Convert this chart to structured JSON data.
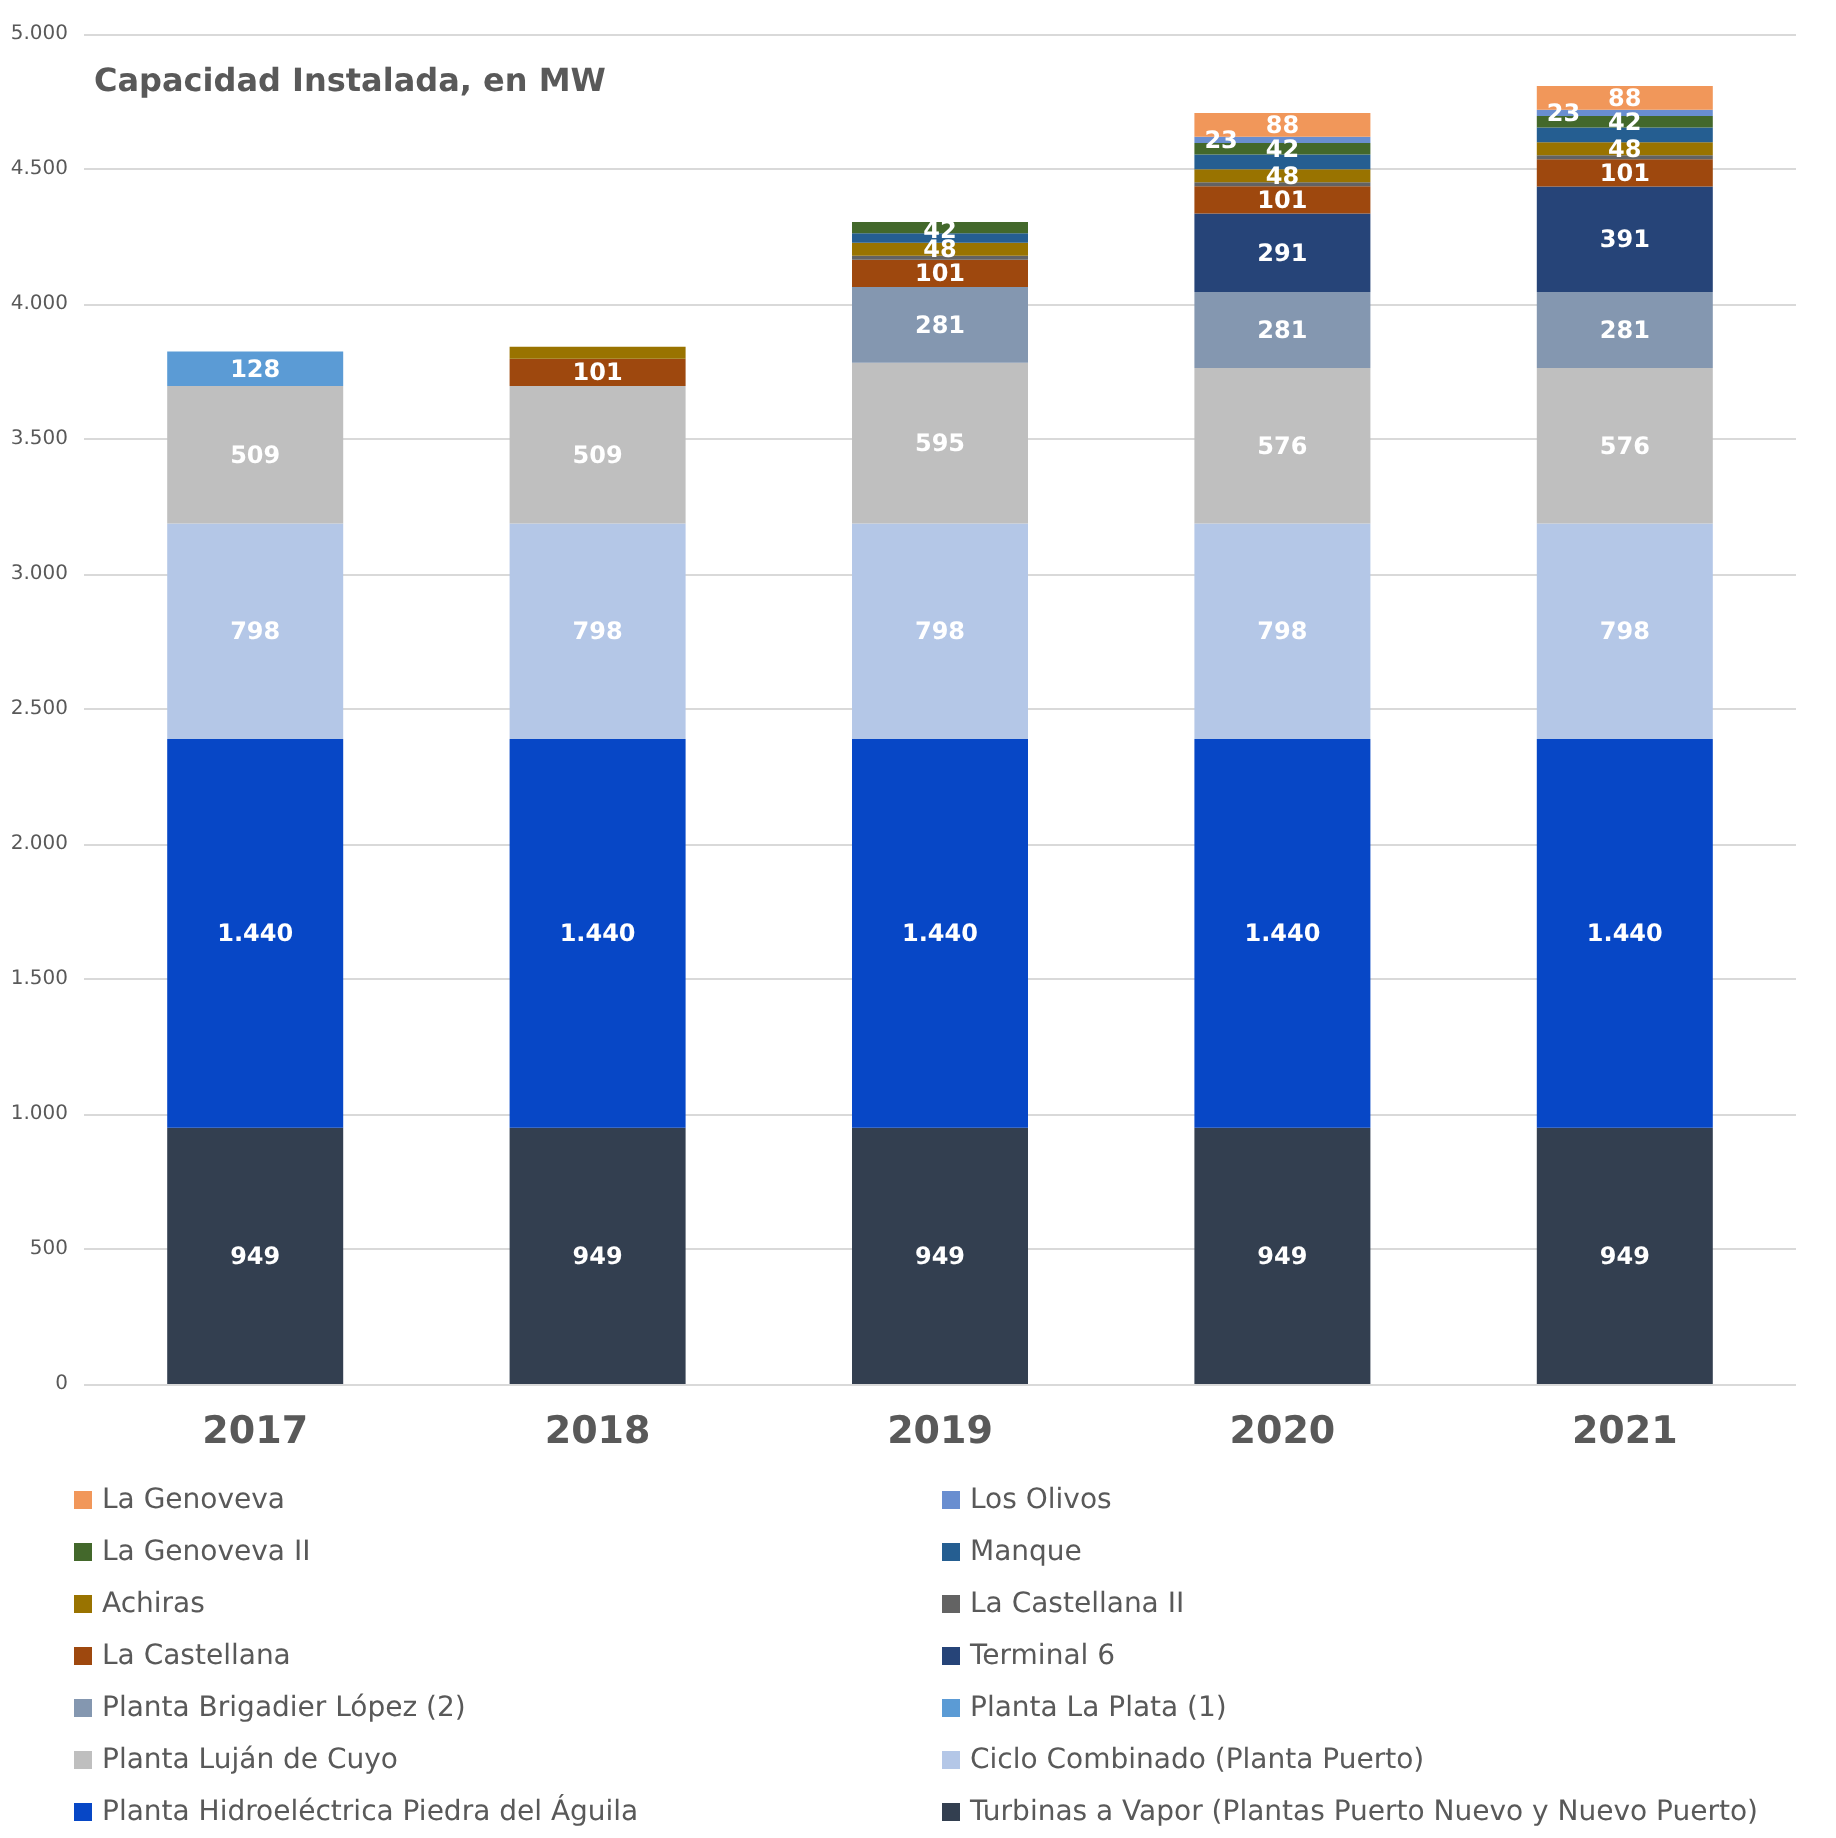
{
  "chart_data": {
    "type": "bar",
    "title": "Capacidad Instalada, en MW",
    "stacked": true,
    "grid": "y",
    "legend": "bottom",
    "categories": [
      "2017",
      "2018",
      "2019",
      "2020",
      "2021"
    ],
    "ylim": [
      0,
      5000
    ],
    "yticks": [
      0,
      500,
      {
        "value": 1000,
        "label": "1.000"
      },
      {
        "value": 1500,
        "label": "1.500"
      },
      {
        "value": 2000,
        "label": "2.000"
      },
      {
        "value": 2500,
        "label": "2.500"
      },
      {
        "value": 3000,
        "label": "3.000"
      },
      {
        "value": 3500,
        "label": "3.500"
      },
      {
        "value": 4000,
        "label": "4.000"
      },
      {
        "value": 4500,
        "label": "4.500"
      },
      {
        "value": 5000,
        "label": "5.000"
      }
    ],
    "series": [
      {
        "name": "Turbinas a Vapor (Plantas Puerto Nuevo y Nuevo Puerto)",
        "color": "#333f50",
        "values": [
          949,
          949,
          949,
          949,
          949
        ],
        "value_labels": [
          "949",
          "949",
          "949",
          "949",
          "949"
        ]
      },
      {
        "name": "Planta Hidroeléctrica Piedra del Águila",
        "color": "#0747c6",
        "values": [
          1440,
          1440,
          1440,
          1440,
          1440
        ],
        "value_labels": [
          "1.440",
          "1.440",
          "1.440",
          "1.440",
          "1.440"
        ]
      },
      {
        "name": "Ciclo Combinado (Planta Puerto)",
        "color": "#b4c7e7",
        "values": [
          798,
          798,
          798,
          798,
          798
        ],
        "value_labels": [
          "798",
          "798",
          "798",
          "798",
          "798"
        ]
      },
      {
        "name": "Planta Luján de Cuyo",
        "color": "#bfbfbf",
        "values": [
          509,
          509,
          595,
          576,
          576
        ],
        "value_labels": [
          "509",
          "509",
          "595",
          "576",
          "576"
        ]
      },
      {
        "name": "Planta La Plata (1)",
        "color": "#5b9bd5",
        "values": [
          128,
          null,
          null,
          null,
          null
        ],
        "value_labels": [
          "128",
          null,
          null,
          null,
          null
        ]
      },
      {
        "name": "Planta Brigadier López (2)",
        "color": "#8497b0",
        "values": [
          null,
          null,
          281,
          281,
          281
        ],
        "value_labels": [
          null,
          null,
          "281",
          "281",
          "281"
        ]
      },
      {
        "name": "Terminal 6",
        "color": "#264478",
        "values": [
          null,
          null,
          null,
          291,
          391
        ],
        "value_labels": [
          null,
          null,
          null,
          "291",
          "391"
        ]
      },
      {
        "name": "La Castellana",
        "color": "#9e480e",
        "values": [
          null,
          101,
          101,
          101,
          101
        ],
        "value_labels": [
          null,
          "101",
          "101",
          "101",
          "101"
        ]
      },
      {
        "name": "La Castellana II",
        "color": "#636363",
        "values": [
          null,
          null,
          15,
          15,
          15
        ]
      },
      {
        "name": "Achiras",
        "color": "#997300",
        "values": [
          null,
          45,
          48,
          48,
          48
        ],
        "value_labels": [
          null,
          null,
          "48",
          "48",
          "48"
        ]
      },
      {
        "name": "Manque",
        "color": "#255e91",
        "values": [
          null,
          null,
          35,
          55,
          55
        ]
      },
      {
        "name": "La Genoveva II",
        "color": "#43682b",
        "values": [
          null,
          null,
          42,
          42,
          42
        ],
        "value_labels": [
          null,
          null,
          "42",
          "42",
          "42"
        ]
      },
      {
        "name": "Los Olivos",
        "color": "#698ed0",
        "values": [
          null,
          null,
          null,
          23,
          23
        ],
        "value_labels": [
          null,
          null,
          null,
          "23",
          "23"
        ]
      },
      {
        "name": "La Genoveva",
        "color": "#f1975a",
        "values": [
          null,
          null,
          null,
          88,
          88
        ],
        "value_labels": [
          null,
          null,
          null,
          "88",
          "88"
        ]
      }
    ]
  }
}
